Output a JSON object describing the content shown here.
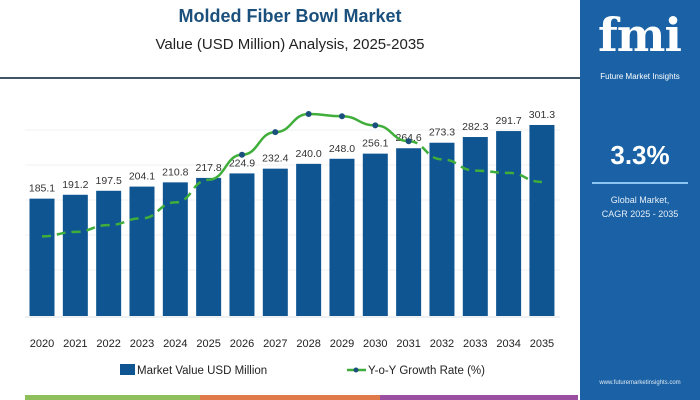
{
  "header": {
    "title": "Molded Fiber Bowl Market",
    "subtitle": "Value (USD Million) Analysis, 2025-2035"
  },
  "panel": {
    "logo": "fmi",
    "logo_text": "Future Market Insights",
    "cagr_value": "3.3%",
    "cagr_label_1": "Global Market,",
    "cagr_label_2": "CAGR 2025 - 2035",
    "url": "www.futuremarketinsights.com"
  },
  "colors": {
    "bar": "#0f5592",
    "line": "#3fae3a",
    "marker": "#1b4f7c",
    "panel": "#1a62a5",
    "strip": [
      "#8dc05a",
      "#e07a4a",
      "#9b4fa0"
    ]
  },
  "chart_data": {
    "type": "bar",
    "title": "Molded Fiber Bowl Market",
    "subtitle": "Value (USD Million) Analysis, 2025-2035",
    "categories": [
      "2020",
      "2021",
      "2022",
      "2023",
      "2024",
      "2025",
      "2026",
      "2027",
      "2028",
      "2029",
      "2030",
      "2031",
      "2032",
      "2033",
      "2034",
      "2035"
    ],
    "series": [
      {
        "name": "Market Value USD Million",
        "type": "bar",
        "values": [
          185.1,
          191.2,
          197.5,
          204.1,
          210.8,
          217.8,
          224.9,
          232.4,
          240.0,
          248.0,
          256.1,
          264.6,
          273.3,
          282.3,
          291.7,
          301.3
        ],
        "labels": [
          "185.1",
          "191.2",
          "197.5",
          "204.1",
          "210.8",
          "217.8",
          "224.9",
          "232.4",
          "240.0",
          "248.0",
          "256.1",
          "264.6",
          "273.3",
          "282.3",
          "291.7",
          "301.3"
        ]
      },
      {
        "name": "Y-o-Y Growth Rate (%)",
        "type": "line",
        "values": [
          3.06,
          3.08,
          3.11,
          3.14,
          3.21,
          3.31,
          3.42,
          3.52,
          3.6,
          3.59,
          3.55,
          3.48,
          3.4,
          3.35,
          3.34,
          3.3
        ]
      }
    ],
    "ylim": [
      0,
      320
    ],
    "y2lim": [
      3.0,
      3.6
    ],
    "grid": true,
    "legend": "bottom"
  }
}
